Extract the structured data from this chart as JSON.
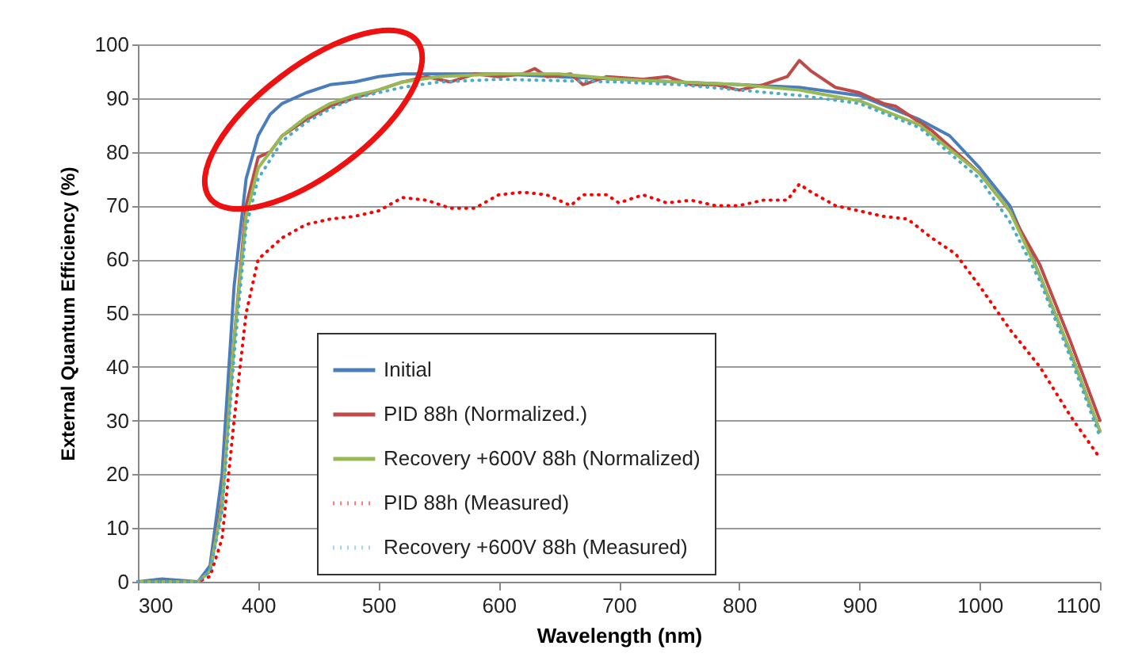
{
  "chart_data": {
    "type": "line",
    "xlabel": "Wavelength (nm)",
    "ylabel": "External Quantum Efficiency (%)",
    "xlim": [
      300,
      1100
    ],
    "ylim": [
      0,
      100
    ],
    "xticks": [
      300,
      400,
      500,
      600,
      700,
      800,
      900,
      1000,
      1100
    ],
    "yticks": [
      0,
      10,
      20,
      30,
      40,
      50,
      60,
      70,
      80,
      90,
      100
    ],
    "grid": "y",
    "legend": "bottom",
    "marker": "none",
    "series": [
      {
        "name": "Initial",
        "color": "#4a7ebb",
        "line_style": "solid",
        "x": [
          300,
          320,
          350,
          360,
          370,
          380,
          390,
          400,
          410,
          420,
          440,
          460,
          480,
          500,
          520,
          550,
          600,
          650,
          700,
          750,
          800,
          850,
          900,
          950,
          975,
          1000,
          1025,
          1050,
          1075,
          1100
        ],
        "values": [
          0,
          0.5,
          0,
          3,
          20,
          55,
          75,
          83,
          87,
          89,
          91,
          92.5,
          93,
          94,
          94.5,
          94.5,
          94.5,
          94,
          93.5,
          93,
          92.5,
          92,
          90.5,
          86,
          83,
          77,
          70,
          57,
          43,
          28
        ]
      },
      {
        "name": "PID 88h (Normalized.)",
        "color": "#be4b48",
        "line_style": "solid",
        "x": [
          300,
          350,
          360,
          370,
          380,
          390,
          400,
          410,
          420,
          440,
          460,
          480,
          500,
          520,
          540,
          560,
          580,
          600,
          620,
          630,
          640,
          660,
          670,
          690,
          720,
          740,
          760,
          780,
          800,
          820,
          840,
          850,
          860,
          880,
          900,
          920,
          930,
          960,
          980,
          1000,
          1025,
          1050,
          1075,
          1100
        ],
        "values": [
          0,
          0,
          2,
          15,
          45,
          70,
          79,
          80,
          83,
          86,
          88.5,
          90,
          91.5,
          93,
          94,
          93,
          94.5,
          94,
          94.5,
          95.5,
          94,
          94.5,
          92.5,
          94,
          93.5,
          94,
          92.5,
          92.5,
          91.5,
          92.5,
          94,
          97,
          95,
          92,
          91,
          89,
          88.5,
          84,
          80,
          76,
          69,
          59,
          45,
          30
        ]
      },
      {
        "name": "Recovery +600V 88h (Normalized)",
        "color": "#98b954",
        "line_style": "solid",
        "x": [
          300,
          350,
          360,
          370,
          380,
          390,
          400,
          420,
          440,
          460,
          480,
          500,
          520,
          550,
          600,
          650,
          700,
          750,
          800,
          850,
          900,
          950,
          1000,
          1025,
          1050,
          1075,
          1100
        ],
        "values": [
          0,
          0,
          2,
          14,
          45,
          68,
          77,
          83,
          86.5,
          89,
          90.5,
          91.5,
          93,
          94,
          94.5,
          94.5,
          93.5,
          93,
          92.5,
          91.5,
          89.5,
          85,
          76,
          69,
          57,
          43,
          28
        ]
      },
      {
        "name": "PID 88h (Measured)",
        "color": "#ff0000",
        "line_style": "dotted",
        "x": [
          300,
          350,
          360,
          370,
          380,
          390,
          400,
          410,
          420,
          440,
          460,
          480,
          500,
          520,
          540,
          560,
          580,
          600,
          620,
          640,
          660,
          670,
          690,
          700,
          720,
          740,
          760,
          780,
          800,
          820,
          840,
          850,
          860,
          880,
          900,
          920,
          940,
          960,
          980,
          1000,
          1025,
          1050,
          1075,
          1100
        ],
        "values": [
          0,
          0,
          1,
          8,
          30,
          50,
          60,
          62,
          64,
          66.5,
          67.5,
          68,
          69,
          71.5,
          71,
          69.5,
          69.5,
          72,
          72.5,
          72,
          70,
          72,
          72,
          70.5,
          72,
          70.5,
          71,
          70,
          70,
          71,
          71,
          74,
          72.5,
          70,
          69,
          68,
          67.5,
          64,
          61,
          55,
          47,
          40,
          31,
          23
        ]
      },
      {
        "name": "Recovery +600V 88h (Measured)",
        "color": "#4bacc6",
        "line_style": "dotted",
        "x": [
          300,
          350,
          360,
          370,
          380,
          390,
          400,
          420,
          440,
          460,
          480,
          500,
          520,
          550,
          600,
          700,
          750,
          800,
          850,
          900,
          950,
          1000,
          1025,
          1050,
          1075,
          1100
        ],
        "values": [
          0,
          0,
          2,
          13,
          42,
          66,
          75,
          82,
          85.5,
          88,
          90,
          91,
          92,
          93,
          93.5,
          93,
          92.5,
          91.5,
          90.5,
          89,
          84.5,
          75,
          67,
          56,
          42,
          27
        ]
      }
    ]
  }
}
